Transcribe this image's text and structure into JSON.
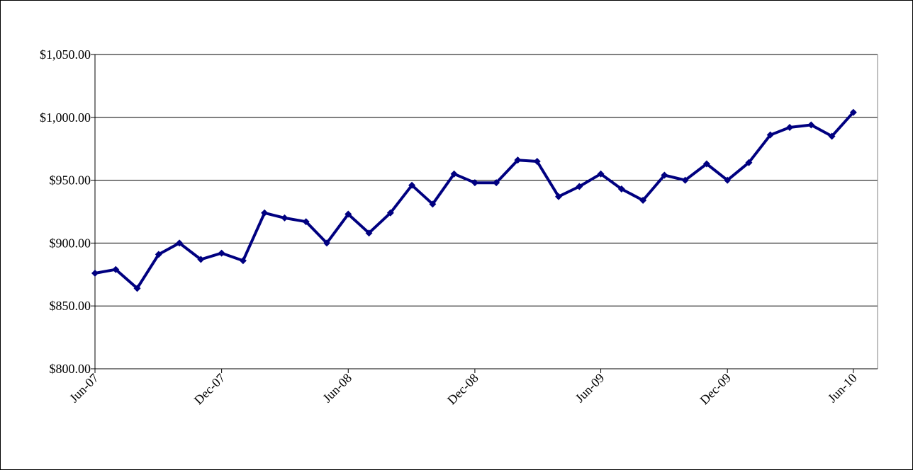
{
  "chart_data": {
    "type": "line",
    "title": "",
    "xlabel": "",
    "ylabel": "",
    "x_tick_labels": [
      "Jun-07",
      "Dec-07",
      "Jun-08",
      "Dec-08",
      "Jun-09",
      "Dec-09",
      "Jun-10"
    ],
    "x_tick_dates": [
      "2007-06-01",
      "2007-12-01",
      "2008-06-01",
      "2008-12-01",
      "2009-06-01",
      "2009-12-01",
      "2010-06-01"
    ],
    "y_tick_labels": [
      "$800.00",
      "$850.00",
      "$900.00",
      "$950.00",
      "$1,000.00",
      "$1,050.00"
    ],
    "y_tick_values": [
      800,
      850,
      900,
      950,
      1000,
      1050
    ],
    "xlim": [
      "2007-06-01",
      "2010-07-06"
    ],
    "ylim": [
      800,
      1050
    ],
    "grid": "horizontal",
    "legend": "none",
    "colors": {
      "series": "#000080",
      "grid": "#000000",
      "axis": "#000000"
    },
    "series": [
      {
        "x": [
          "2007-06-01",
          "2007-07-01",
          "2007-08-01",
          "2007-09-01",
          "2007-10-01",
          "2007-11-01",
          "2007-12-01",
          "2008-01-01",
          "2008-02-01",
          "2008-03-01",
          "2008-04-01",
          "2008-05-01",
          "2008-06-01",
          "2008-07-01",
          "2008-08-01",
          "2008-09-01",
          "2008-10-01",
          "2008-11-01",
          "2008-12-01",
          "2009-01-01",
          "2009-02-01",
          "2009-03-01",
          "2009-04-01",
          "2009-05-01",
          "2009-06-01",
          "2009-07-01",
          "2009-08-01",
          "2009-09-01",
          "2009-10-01",
          "2009-11-01",
          "2009-12-01",
          "2010-01-01",
          "2010-02-01",
          "2010-03-01",
          "2010-04-01",
          "2010-05-01",
          "2010-06-01"
        ],
        "values": [
          876,
          879,
          864,
          891,
          900,
          887,
          892,
          886,
          924,
          920,
          917,
          900,
          923,
          908,
          924,
          946,
          931,
          955,
          948,
          948,
          966,
          965,
          937,
          945,
          955,
          943,
          934,
          954,
          950,
          963,
          950,
          964,
          986,
          992,
          994,
          985,
          1004
        ]
      }
    ]
  }
}
